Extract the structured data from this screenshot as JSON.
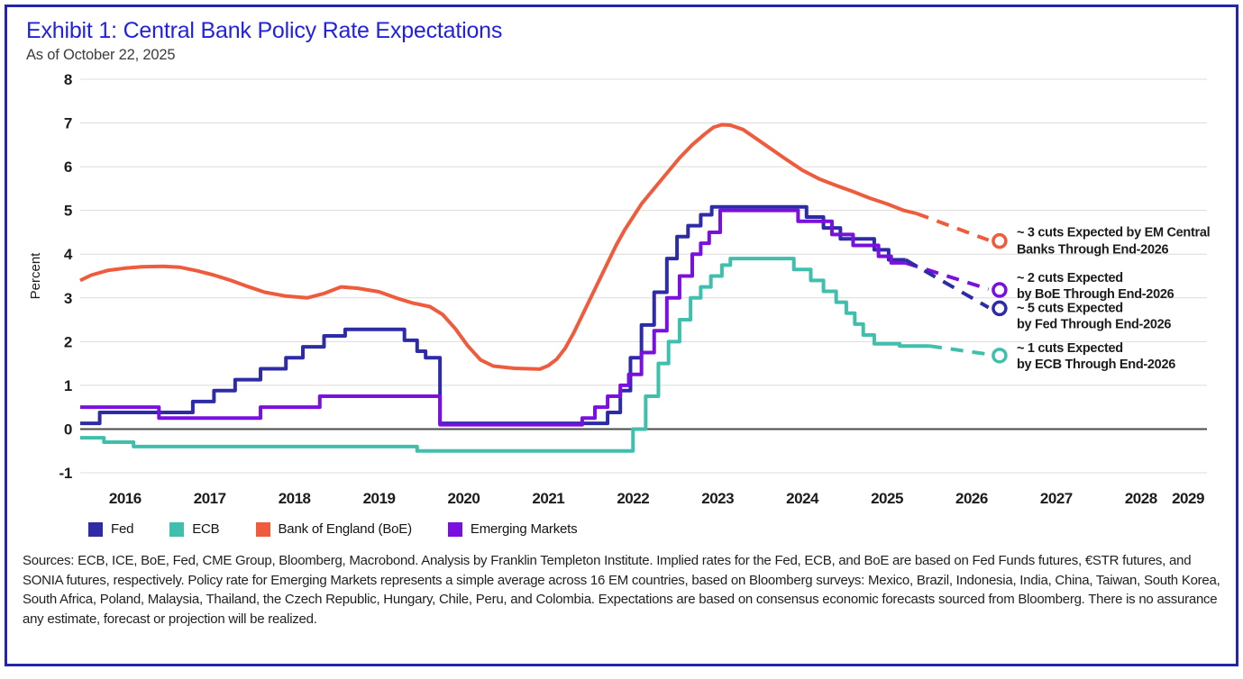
{
  "header": {
    "title": "Exhibit 1: Central Bank Policy Rate Expectations",
    "subtitle": "As of October 22, 2025"
  },
  "colors": {
    "title_blue": "#2222DD",
    "frame_border": "#2424AC",
    "fed": "#2E2BA6",
    "ecb": "#3FBFAC",
    "boe": "#EE5B3D",
    "em": "#7A10DF",
    "gridline": "#DCDCDC",
    "zero_line": "#4A4A4A"
  },
  "chart_data": {
    "type": "line",
    "title": "Exhibit 1: Central Bank Policy Rate Expectations",
    "subtitle": "As of October 22, 2025",
    "xlabel": "",
    "ylabel": "Percent",
    "xlim": [
      2015.47,
      2028.78
    ],
    "ylim": [
      -1,
      8
    ],
    "x_ticks": [
      2016,
      2017,
      2018,
      2019,
      2020,
      2021,
      2022,
      2023,
      2024,
      2025,
      2026,
      2027,
      2028,
      2029
    ],
    "y_ticks": [
      -1,
      0,
      1,
      2,
      3,
      4,
      5,
      6,
      7,
      8
    ],
    "grid": "horizontal",
    "legend_position": "bottom",
    "series": [
      {
        "name": "Fed",
        "color": "#2E2BA6",
        "style": "step",
        "points": [
          [
            2015.47,
            0.13
          ],
          [
            2015.7,
            0.38
          ],
          [
            2016.8,
            0.63
          ],
          [
            2017.05,
            0.88
          ],
          [
            2017.3,
            1.13
          ],
          [
            2017.6,
            1.38
          ],
          [
            2017.9,
            1.63
          ],
          [
            2018.1,
            1.88
          ],
          [
            2018.35,
            2.13
          ],
          [
            2018.6,
            2.28
          ],
          [
            2019.3,
            2.03
          ],
          [
            2019.45,
            1.78
          ],
          [
            2019.55,
            1.63
          ],
          [
            2019.72,
            0.13
          ],
          [
            2021.7,
            0.38
          ],
          [
            2021.85,
            0.88
          ],
          [
            2021.97,
            1.63
          ],
          [
            2022.1,
            2.38
          ],
          [
            2022.25,
            3.13
          ],
          [
            2022.4,
            3.9
          ],
          [
            2022.52,
            4.4
          ],
          [
            2022.65,
            4.65
          ],
          [
            2022.8,
            4.9
          ],
          [
            2022.93,
            5.08
          ],
          [
            2024.05,
            4.85
          ],
          [
            2024.25,
            4.6
          ],
          [
            2024.45,
            4.35
          ],
          [
            2024.85,
            4.1
          ],
          [
            2025.02,
            3.87
          ],
          [
            2025.22,
            3.87
          ]
        ]
      },
      {
        "name": "ECB",
        "color": "#3FBFAC",
        "style": "step",
        "points": [
          [
            2015.47,
            -0.2
          ],
          [
            2015.75,
            -0.3
          ],
          [
            2016.1,
            -0.4
          ],
          [
            2019.45,
            -0.5
          ],
          [
            2022.0,
            0.0
          ],
          [
            2022.15,
            0.75
          ],
          [
            2022.3,
            1.5
          ],
          [
            2022.42,
            2.0
          ],
          [
            2022.55,
            2.5
          ],
          [
            2022.68,
            3.0
          ],
          [
            2022.8,
            3.25
          ],
          [
            2022.92,
            3.5
          ],
          [
            2023.05,
            3.75
          ],
          [
            2023.15,
            3.9
          ],
          [
            2023.9,
            3.65
          ],
          [
            2024.1,
            3.4
          ],
          [
            2024.25,
            3.15
          ],
          [
            2024.4,
            2.9
          ],
          [
            2024.52,
            2.65
          ],
          [
            2024.62,
            2.4
          ],
          [
            2024.72,
            2.15
          ],
          [
            2024.85,
            1.95
          ],
          [
            2025.15,
            1.9
          ],
          [
            2025.5,
            1.9
          ]
        ]
      },
      {
        "name": "Emerging Markets",
        "color": "#7A10DF",
        "style": "step",
        "points": [
          [
            2015.47,
            0.5
          ],
          [
            2016.4,
            0.25
          ],
          [
            2017.6,
            0.5
          ],
          [
            2018.3,
            0.75
          ],
          [
            2019.72,
            0.1
          ],
          [
            2021.4,
            0.25
          ],
          [
            2021.55,
            0.5
          ],
          [
            2021.7,
            0.75
          ],
          [
            2021.85,
            1.0
          ],
          [
            2021.95,
            1.25
          ],
          [
            2022.1,
            1.75
          ],
          [
            2022.25,
            2.25
          ],
          [
            2022.4,
            3.0
          ],
          [
            2022.55,
            3.5
          ],
          [
            2022.7,
            4.0
          ],
          [
            2022.8,
            4.25
          ],
          [
            2022.9,
            4.5
          ],
          [
            2023.03,
            5.0
          ],
          [
            2023.95,
            4.75
          ],
          [
            2024.35,
            4.45
          ],
          [
            2024.6,
            4.2
          ],
          [
            2024.9,
            3.95
          ],
          [
            2025.05,
            3.8
          ],
          [
            2025.22,
            3.8
          ]
        ]
      },
      {
        "name": "Bank of England (BoE)",
        "color": "#EE5B3D",
        "style": "line",
        "points": [
          [
            2015.47,
            3.4
          ],
          [
            2015.6,
            3.52
          ],
          [
            2015.8,
            3.63
          ],
          [
            2016.0,
            3.68
          ],
          [
            2016.2,
            3.71
          ],
          [
            2016.45,
            3.72
          ],
          [
            2016.65,
            3.7
          ],
          [
            2016.85,
            3.62
          ],
          [
            2017.05,
            3.52
          ],
          [
            2017.25,
            3.4
          ],
          [
            2017.45,
            3.26
          ],
          [
            2017.65,
            3.13
          ],
          [
            2017.9,
            3.04
          ],
          [
            2018.15,
            3.0
          ],
          [
            2018.35,
            3.1
          ],
          [
            2018.55,
            3.25
          ],
          [
            2018.75,
            3.22
          ],
          [
            2019.0,
            3.14
          ],
          [
            2019.2,
            3.0
          ],
          [
            2019.4,
            2.88
          ],
          [
            2019.6,
            2.8
          ],
          [
            2019.75,
            2.62
          ],
          [
            2019.9,
            2.3
          ],
          [
            2020.05,
            1.9
          ],
          [
            2020.2,
            1.58
          ],
          [
            2020.35,
            1.44
          ],
          [
            2020.6,
            1.39
          ],
          [
            2020.9,
            1.37
          ],
          [
            2021.0,
            1.45
          ],
          [
            2021.1,
            1.6
          ],
          [
            2021.2,
            1.85
          ],
          [
            2021.3,
            2.2
          ],
          [
            2021.4,
            2.6
          ],
          [
            2021.5,
            3.0
          ],
          [
            2021.6,
            3.4
          ],
          [
            2021.7,
            3.8
          ],
          [
            2021.8,
            4.2
          ],
          [
            2021.9,
            4.55
          ],
          [
            2022.0,
            4.85
          ],
          [
            2022.1,
            5.15
          ],
          [
            2022.25,
            5.5
          ],
          [
            2022.4,
            5.85
          ],
          [
            2022.55,
            6.2
          ],
          [
            2022.7,
            6.5
          ],
          [
            2022.85,
            6.75
          ],
          [
            2022.95,
            6.9
          ],
          [
            2023.05,
            6.96
          ],
          [
            2023.15,
            6.95
          ],
          [
            2023.3,
            6.85
          ],
          [
            2023.45,
            6.65
          ],
          [
            2023.6,
            6.45
          ],
          [
            2023.8,
            6.18
          ],
          [
            2024.0,
            5.92
          ],
          [
            2024.2,
            5.72
          ],
          [
            2024.4,
            5.57
          ],
          [
            2024.6,
            5.43
          ],
          [
            2024.8,
            5.28
          ],
          [
            2025.0,
            5.15
          ],
          [
            2025.2,
            5.0
          ],
          [
            2025.35,
            4.93
          ]
        ]
      }
    ],
    "projections": [
      {
        "series": "Bank of England (BoE)",
        "color": "#EE5B3D",
        "from": [
          2025.35,
          4.93
        ],
        "to": [
          2026.2,
          4.32
        ],
        "marker": [
          2026.33,
          4.3
        ]
      },
      {
        "series": "Emerging Markets",
        "color": "#7A10DF",
        "from": [
          2025.22,
          3.8
        ],
        "to": [
          2026.2,
          3.2
        ],
        "marker": [
          2026.33,
          3.18
        ]
      },
      {
        "series": "Fed",
        "color": "#2E2BA6",
        "from": [
          2025.22,
          3.87
        ],
        "to": [
          2026.2,
          2.78
        ],
        "marker": [
          2026.33,
          2.76
        ]
      },
      {
        "series": "ECB",
        "color": "#3FBFAC",
        "from": [
          2025.5,
          1.9
        ],
        "to": [
          2026.2,
          1.71
        ],
        "marker": [
          2026.33,
          1.68
        ]
      }
    ],
    "annotations": [
      {
        "lines": [
          "~ 3 cuts Expected by EM Central",
          "Banks Through End-2026"
        ],
        "at": 4.3,
        "dy": [
          -5,
          14
        ]
      },
      {
        "lines": [
          "~ 2 cuts Expected",
          "by BoE Through End-2026"
        ],
        "at": 3.18,
        "dy": [
          -9,
          9
        ]
      },
      {
        "lines": [
          "~ 5 cuts Expected",
          "by Fed Through End-2026"
        ],
        "at": 2.76,
        "dy": [
          4,
          22
        ]
      },
      {
        "lines": [
          "~ 1 cuts Expected",
          "by ECB Through End-2026"
        ],
        "at": 1.68,
        "dy": [
          -4,
          14
        ]
      }
    ]
  },
  "legend": {
    "items": [
      {
        "label": "Fed",
        "color": "#2E2BA6"
      },
      {
        "label": "ECB",
        "color": "#3FBFAC"
      },
      {
        "label": "Bank of England (BoE)",
        "color": "#EE5B3D"
      },
      {
        "label": "Emerging Markets",
        "color": "#7A10DF"
      }
    ]
  },
  "footer": {
    "text": "Sources: ECB, ICE, BoE, Fed, CME Group, Bloomberg, Macrobond. Analysis by Franklin Templeton Institute. Implied rates for the Fed, ECB, and BoE are based on Fed Funds futures, €STR futures, and SONIA futures, respectively. Policy rate for Emerging Markets represents a simple average across 16 EM countries, based on Bloomberg surveys: Mexico, Brazil, Indonesia, India, China, Taiwan, South Korea, South Africa, Poland, Malaysia, Thailand, the Czech Republic, Hungary, Chile, Peru, and Colombia. Expectations are based on consensus economic forecasts sourced from Bloomberg. There is no assurance any estimate, forecast or projection will be realized."
  }
}
